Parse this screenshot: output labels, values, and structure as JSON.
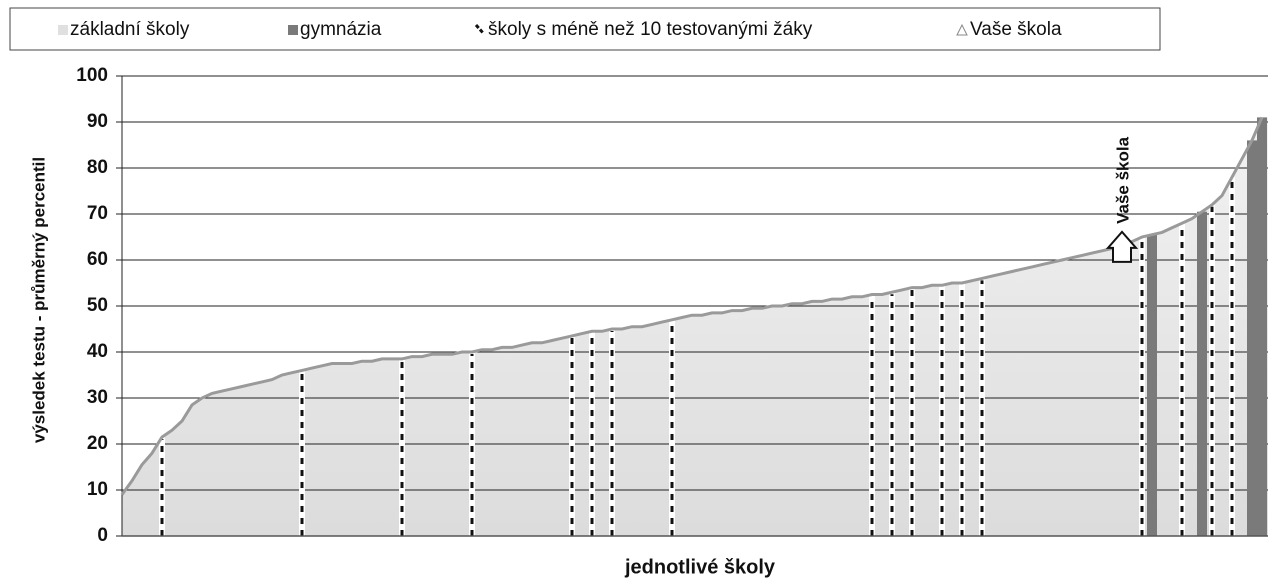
{
  "chart_data": {
    "type": "area",
    "y_label": "výsledek testu - průměrný percentil",
    "x_label": "jednotlivé školy",
    "ylim": [
      0,
      100
    ],
    "yticks": [
      0,
      10,
      20,
      30,
      40,
      50,
      60,
      70,
      80,
      90,
      100
    ],
    "grid": true,
    "legend": "top",
    "series": [
      {
        "name": "základní školy",
        "color": "#e4e4e4",
        "line_color": "#9a9a9a",
        "values": [
          9,
          12,
          15.5,
          18,
          21.5,
          23,
          25,
          28.5,
          30,
          31,
          31.5,
          32,
          32.5,
          33,
          33.5,
          34,
          35,
          35.5,
          36,
          36.5,
          37,
          37.5,
          37.5,
          37.5,
          38,
          38,
          38.5,
          38.5,
          38.5,
          39,
          39,
          39.5,
          39.5,
          39.5,
          40,
          40,
          40.5,
          40.5,
          41,
          41,
          41.5,
          42,
          42,
          42.5,
          43,
          43.5,
          44,
          44.5,
          44.5,
          45,
          45,
          45.5,
          45.5,
          46,
          46.5,
          47,
          47.5,
          48,
          48,
          48.5,
          48.5,
          49,
          49,
          49.5,
          49.5,
          50,
          50,
          50.5,
          50.5,
          51,
          51,
          51.5,
          51.5,
          52,
          52,
          52.5,
          52.5,
          53,
          53.5,
          54,
          54,
          54.5,
          54.5,
          55,
          55,
          55.5,
          56,
          56.5,
          57,
          57.5,
          58,
          58.5,
          59,
          59.5,
          60,
          60.5,
          61,
          61.5,
          62,
          62.5,
          63.5,
          64,
          65,
          65.5,
          66,
          67,
          68,
          69,
          70.5,
          72,
          74,
          78,
          82,
          86,
          91
        ]
      },
      {
        "name": "gymnázia",
        "color": "#7a7a7a",
        "x": [
          103,
          108,
          113,
          114
        ],
        "values": [
          65.5,
          70.5,
          86,
          91
        ]
      },
      {
        "name": "školy s méně než 10 testovanými žáky",
        "color": "#111111",
        "x": [
          4,
          18,
          28,
          35,
          45,
          47,
          49,
          55,
          75,
          77,
          79,
          82,
          84,
          86,
          102,
          106,
          109,
          111
        ],
        "values": [
          21.5,
          36,
          38.5,
          40,
          43.5,
          44.5,
          45,
          47,
          52.5,
          53,
          54,
          54.5,
          55,
          56,
          65,
          68,
          72,
          78
        ]
      },
      {
        "name": "Vaše škola",
        "color": "#ffffff",
        "x": [
          100
        ],
        "values": [
          63.5
        ]
      }
    ],
    "annotations": [
      {
        "text": "Vaše škola"
      }
    ]
  }
}
